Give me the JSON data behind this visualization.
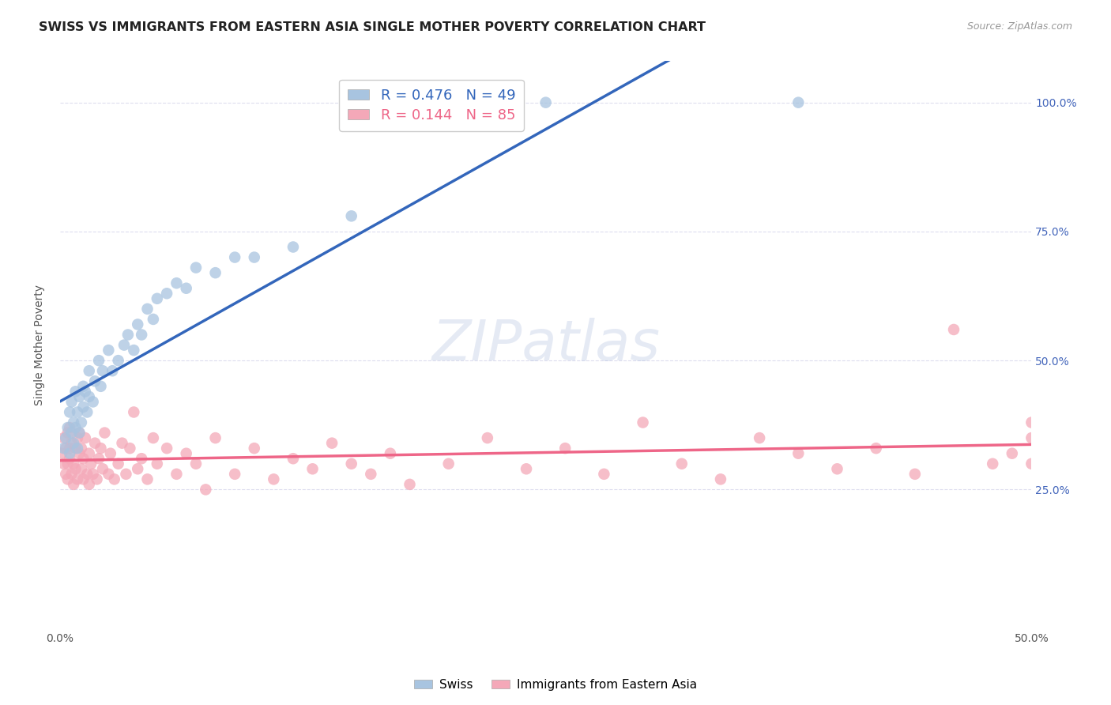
{
  "title": "SWISS VS IMMIGRANTS FROM EASTERN ASIA SINGLE MOTHER POVERTY CORRELATION CHART",
  "source": "Source: ZipAtlas.com",
  "ylabel": "Single Mother Poverty",
  "ytick_labels": [
    "25.0%",
    "50.0%",
    "75.0%",
    "100.0%"
  ],
  "ytick_values": [
    0.25,
    0.5,
    0.75,
    1.0
  ],
  "xlim": [
    0.0,
    0.5
  ],
  "ylim": [
    -0.02,
    1.08
  ],
  "legend_swiss_r": "0.476",
  "legend_swiss_n": "49",
  "legend_imm_r": "0.144",
  "legend_imm_n": "85",
  "blue_color": "#A8C4E0",
  "pink_color": "#F4A8B8",
  "trend_blue": "#3366BB",
  "trend_blue_dash": "#AABBDD",
  "trend_pink": "#EE6688",
  "watermark": "ZIPatlas",
  "background_color": "#ffffff",
  "grid_color": "#DDDDEE",
  "title_fontsize": 11.5,
  "swiss_x": [
    0.002,
    0.003,
    0.004,
    0.005,
    0.005,
    0.006,
    0.006,
    0.007,
    0.007,
    0.008,
    0.008,
    0.009,
    0.009,
    0.01,
    0.01,
    0.011,
    0.012,
    0.012,
    0.013,
    0.014,
    0.015,
    0.015,
    0.017,
    0.018,
    0.02,
    0.021,
    0.022,
    0.025,
    0.027,
    0.03,
    0.033,
    0.035,
    0.038,
    0.04,
    0.042,
    0.045,
    0.048,
    0.05,
    0.055,
    0.06,
    0.065,
    0.07,
    0.08,
    0.09,
    0.1,
    0.12,
    0.15,
    0.25,
    0.38
  ],
  "swiss_y": [
    0.33,
    0.35,
    0.37,
    0.32,
    0.4,
    0.36,
    0.42,
    0.34,
    0.38,
    0.37,
    0.44,
    0.33,
    0.4,
    0.36,
    0.43,
    0.38,
    0.41,
    0.45,
    0.44,
    0.4,
    0.43,
    0.48,
    0.42,
    0.46,
    0.5,
    0.45,
    0.48,
    0.52,
    0.48,
    0.5,
    0.53,
    0.55,
    0.52,
    0.57,
    0.55,
    0.6,
    0.58,
    0.62,
    0.63,
    0.65,
    0.64,
    0.68,
    0.67,
    0.7,
    0.7,
    0.72,
    0.78,
    1.0,
    1.0
  ],
  "imm_x": [
    0.001,
    0.002,
    0.002,
    0.003,
    0.003,
    0.004,
    0.004,
    0.004,
    0.005,
    0.005,
    0.005,
    0.006,
    0.006,
    0.007,
    0.007,
    0.008,
    0.008,
    0.009,
    0.009,
    0.01,
    0.01,
    0.011,
    0.011,
    0.012,
    0.012,
    0.013,
    0.014,
    0.015,
    0.015,
    0.016,
    0.017,
    0.018,
    0.019,
    0.02,
    0.021,
    0.022,
    0.023,
    0.025,
    0.026,
    0.028,
    0.03,
    0.032,
    0.034,
    0.036,
    0.038,
    0.04,
    0.042,
    0.045,
    0.048,
    0.05,
    0.055,
    0.06,
    0.065,
    0.07,
    0.075,
    0.08,
    0.09,
    0.1,
    0.11,
    0.12,
    0.13,
    0.14,
    0.15,
    0.16,
    0.17,
    0.18,
    0.2,
    0.22,
    0.24,
    0.26,
    0.28,
    0.3,
    0.32,
    0.34,
    0.36,
    0.38,
    0.4,
    0.42,
    0.44,
    0.46,
    0.48,
    0.49,
    0.5,
    0.5,
    0.5
  ],
  "imm_y": [
    0.32,
    0.3,
    0.35,
    0.28,
    0.33,
    0.3,
    0.36,
    0.27,
    0.33,
    0.37,
    0.31,
    0.28,
    0.34,
    0.3,
    0.26,
    0.33,
    0.29,
    0.35,
    0.27,
    0.32,
    0.36,
    0.29,
    0.33,
    0.27,
    0.31,
    0.35,
    0.28,
    0.32,
    0.26,
    0.3,
    0.28,
    0.34,
    0.27,
    0.31,
    0.33,
    0.29,
    0.36,
    0.28,
    0.32,
    0.27,
    0.3,
    0.34,
    0.28,
    0.33,
    0.4,
    0.29,
    0.31,
    0.27,
    0.35,
    0.3,
    0.33,
    0.28,
    0.32,
    0.3,
    0.25,
    0.35,
    0.28,
    0.33,
    0.27,
    0.31,
    0.29,
    0.34,
    0.3,
    0.28,
    0.32,
    0.26,
    0.3,
    0.35,
    0.29,
    0.33,
    0.28,
    0.38,
    0.3,
    0.27,
    0.35,
    0.32,
    0.29,
    0.33,
    0.28,
    0.56,
    0.3,
    0.32,
    0.35,
    0.3,
    0.38
  ]
}
